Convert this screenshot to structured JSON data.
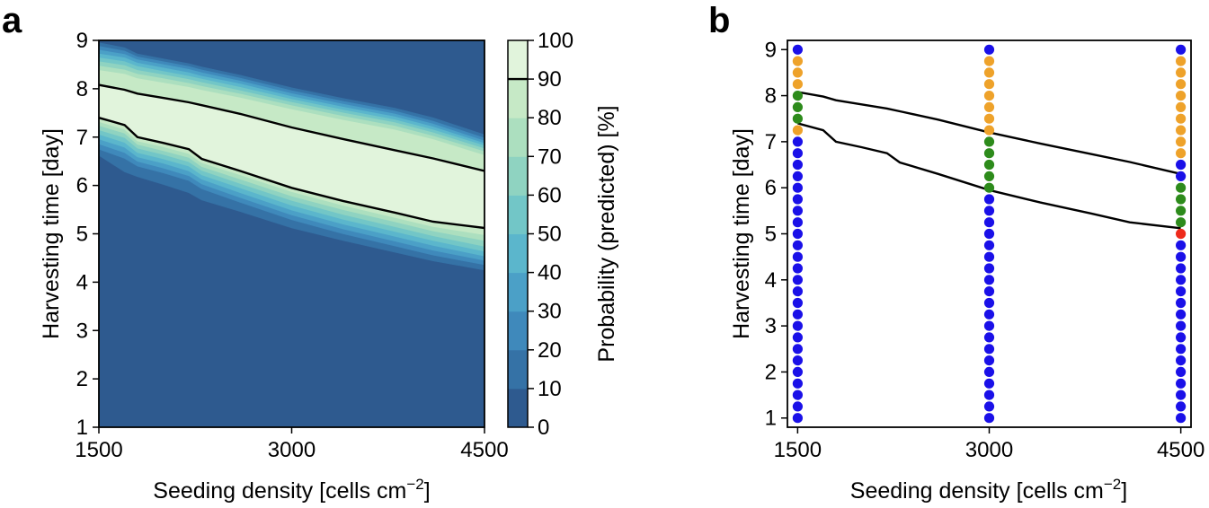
{
  "panels": {
    "a": "a",
    "b": "b"
  },
  "colors": {
    "colormap": [
      "#2e5a8f",
      "#3572a6",
      "#3f89bb",
      "#4ba0c7",
      "#5bb6cc",
      "#72c6c7",
      "#8fd3c1",
      "#acdfbf",
      "#c6e9c6",
      "#e1f4dc",
      "#ffffff"
    ],
    "contour_line": "#000000",
    "point_colors": {
      "blue": "#1a10e8",
      "orange": "#eea22a",
      "green": "#2d8b1b",
      "red": "#ee2a1b"
    }
  },
  "chart_data": [
    {
      "id": "panel_a",
      "type": "contourf",
      "title": "",
      "xlabel_prefix": "Seeding density [cells cm",
      "xlabel_sup": "−2",
      "xlabel_suffix": "]",
      "ylabel": "Harvesting time [day]",
      "xlim": [
        1500,
        4500
      ],
      "ylim": [
        1,
        9
      ],
      "xticks": [
        1500,
        3000,
        4500
      ],
      "yticks": [
        1,
        2,
        3,
        4,
        5,
        6,
        7,
        8,
        9
      ],
      "x_grid": [
        1500,
        1700,
        1800,
        2000,
        2200,
        2300,
        2600,
        3000,
        3400,
        3800,
        4100,
        4500
      ],
      "upper_boundaries": [
        {
          "level": 10,
          "y": [
            8.95,
            8.85,
            8.72,
            8.62,
            8.52,
            8.45,
            8.28,
            8.02,
            7.8,
            7.6,
            7.4,
            7.05
          ]
        },
        {
          "level": 20,
          "y": [
            8.88,
            8.78,
            8.66,
            8.56,
            8.46,
            8.39,
            8.22,
            7.96,
            7.74,
            7.54,
            7.33,
            6.98
          ]
        },
        {
          "level": 30,
          "y": [
            8.8,
            8.71,
            8.6,
            8.5,
            8.4,
            8.33,
            8.16,
            7.9,
            7.68,
            7.48,
            7.27,
            6.92
          ]
        },
        {
          "level": 40,
          "y": [
            8.72,
            8.64,
            8.53,
            8.43,
            8.33,
            8.26,
            8.1,
            7.84,
            7.62,
            7.42,
            7.21,
            6.87
          ]
        },
        {
          "level": 50,
          "y": [
            8.64,
            8.56,
            8.46,
            8.36,
            8.26,
            8.2,
            8.03,
            7.78,
            7.56,
            7.36,
            7.15,
            6.82
          ]
        },
        {
          "level": 60,
          "y": [
            8.56,
            8.48,
            8.38,
            8.29,
            8.19,
            8.13,
            7.96,
            7.72,
            7.5,
            7.3,
            7.09,
            6.76
          ]
        },
        {
          "level": 70,
          "y": [
            8.47,
            8.39,
            8.3,
            8.21,
            8.11,
            8.05,
            7.89,
            7.65,
            7.43,
            7.23,
            7.02,
            6.7
          ]
        },
        {
          "level": 80,
          "y": [
            8.38,
            8.3,
            8.21,
            8.12,
            8.03,
            7.97,
            7.81,
            7.57,
            7.35,
            7.15,
            6.95,
            6.62
          ]
        },
        {
          "level": 90,
          "y": [
            8.08,
            7.98,
            7.9,
            7.81,
            7.72,
            7.66,
            7.48,
            7.2,
            6.96,
            6.73,
            6.56,
            6.3
          ]
        }
      ],
      "lower_boundaries": [
        {
          "level": 90,
          "y": [
            7.4,
            7.25,
            7.0,
            6.88,
            6.75,
            6.55,
            6.3,
            5.95,
            5.68,
            5.44,
            5.25,
            5.12
          ]
        },
        {
          "level": 80,
          "y": [
            7.32,
            7.16,
            6.92,
            6.8,
            6.66,
            6.47,
            6.22,
            5.87,
            5.59,
            5.34,
            5.15,
            4.98
          ]
        },
        {
          "level": 70,
          "y": [
            7.24,
            7.08,
            6.85,
            6.72,
            6.58,
            6.39,
            6.13,
            5.78,
            5.5,
            5.25,
            5.06,
            4.86
          ]
        },
        {
          "level": 60,
          "y": [
            7.15,
            6.99,
            6.77,
            6.64,
            6.49,
            6.31,
            6.04,
            5.69,
            5.4,
            5.15,
            4.96,
            4.74
          ]
        },
        {
          "level": 50,
          "y": [
            7.06,
            6.89,
            6.68,
            6.55,
            6.4,
            6.22,
            5.95,
            5.59,
            5.3,
            5.05,
            4.86,
            4.64
          ]
        },
        {
          "level": 40,
          "y": [
            6.96,
            6.79,
            6.59,
            6.46,
            6.3,
            6.13,
            5.85,
            5.49,
            5.2,
            4.95,
            4.76,
            4.54
          ]
        },
        {
          "level": 30,
          "y": [
            6.86,
            6.68,
            6.5,
            6.36,
            6.2,
            6.03,
            5.75,
            5.39,
            5.1,
            4.85,
            4.66,
            4.45
          ]
        },
        {
          "level": 20,
          "y": [
            6.75,
            6.56,
            6.4,
            6.26,
            6.1,
            5.93,
            5.65,
            5.29,
            5.0,
            4.75,
            4.56,
            4.36
          ]
        },
        {
          "level": 10,
          "y": [
            6.62,
            6.28,
            6.18,
            6.02,
            5.85,
            5.7,
            5.46,
            5.12,
            4.86,
            4.62,
            4.44,
            4.25
          ]
        }
      ],
      "contour_lines": [
        {
          "level": 90,
          "x": [
            1500,
            1700,
            1800,
            2000,
            2200,
            2300,
            2600,
            3000,
            3400,
            3800,
            4100,
            4500
          ],
          "y": [
            8.08,
            7.98,
            7.9,
            7.81,
            7.72,
            7.66,
            7.48,
            7.2,
            6.96,
            6.73,
            6.56,
            6.3
          ]
        },
        {
          "level": 90,
          "x": [
            1500,
            1700,
            1800,
            2000,
            2200,
            2300,
            2600,
            3000,
            3400,
            3800,
            4100,
            4500
          ],
          "y": [
            7.4,
            7.25,
            7.0,
            6.88,
            6.75,
            6.55,
            6.3,
            5.95,
            5.68,
            5.44,
            5.25,
            5.12
          ]
        }
      ],
      "colorbar": {
        "label": "Probability (predicted) [%]",
        "levels": [
          0,
          10,
          20,
          30,
          40,
          50,
          60,
          70,
          80,
          90,
          100
        ],
        "tick_labels": [
          "0",
          "10",
          "20",
          "30",
          "40",
          "50",
          "60",
          "70",
          "80",
          "90",
          "100"
        ],
        "line_at": 90
      }
    },
    {
      "id": "panel_b",
      "type": "scatter",
      "title": "",
      "xlabel_prefix": "Seeding density [cells cm",
      "xlabel_sup": "−2",
      "xlabel_suffix": "]",
      "ylabel": "Harvesting time [day]",
      "xlim": [
        1420,
        4580
      ],
      "ylim": [
        0.8,
        9.2
      ],
      "xticks": [
        1500,
        3000,
        4500
      ],
      "yticks": [
        1,
        2,
        3,
        4,
        5,
        6,
        7,
        8,
        9
      ],
      "series": [
        {
          "name": "seed_1500",
          "x": 1500,
          "y_start": 1.0,
          "y_step": 0.25,
          "colors": [
            "blue",
            "blue",
            "blue",
            "blue",
            "blue",
            "blue",
            "blue",
            "blue",
            "blue",
            "blue",
            "blue",
            "blue",
            "blue",
            "blue",
            "blue",
            "blue",
            "blue",
            "blue",
            "blue",
            "blue",
            "blue",
            "blue",
            "blue",
            "blue",
            "blue",
            "orange",
            "green",
            "green",
            "green",
            "orange",
            "orange",
            "orange",
            "blue"
          ]
        },
        {
          "name": "seed_3000",
          "x": 3000,
          "y_start": 1.0,
          "y_step": 0.25,
          "colors": [
            "blue",
            "blue",
            "blue",
            "blue",
            "blue",
            "blue",
            "blue",
            "blue",
            "blue",
            "blue",
            "blue",
            "blue",
            "blue",
            "blue",
            "blue",
            "blue",
            "blue",
            "blue",
            "blue",
            "blue",
            "green",
            "green",
            "green",
            "green",
            "green",
            "orange",
            "orange",
            "orange",
            "orange",
            "orange",
            "orange",
            "orange",
            "blue"
          ]
        },
        {
          "name": "seed_4500",
          "x": 4500,
          "y_start": 1.0,
          "y_step": 0.25,
          "colors": [
            "blue",
            "blue",
            "blue",
            "blue",
            "blue",
            "blue",
            "blue",
            "blue",
            "blue",
            "blue",
            "blue",
            "blue",
            "blue",
            "blue",
            "blue",
            "blue",
            "red",
            "green",
            "green",
            "green",
            "green",
            "blue",
            "blue",
            "orange",
            "orange",
            "orange",
            "orange",
            "orange",
            "orange",
            "orange",
            "orange",
            "orange",
            "blue"
          ]
        }
      ],
      "contour_lines": [
        {
          "level": 90,
          "x": [
            1500,
            1700,
            1800,
            2000,
            2200,
            2300,
            2600,
            3000,
            3400,
            3800,
            4100,
            4500
          ],
          "y": [
            8.08,
            7.98,
            7.9,
            7.81,
            7.72,
            7.66,
            7.48,
            7.2,
            6.96,
            6.73,
            6.56,
            6.3
          ]
        },
        {
          "level": 90,
          "x": [
            1500,
            1700,
            1800,
            2000,
            2200,
            2300,
            2600,
            3000,
            3400,
            3800,
            4100,
            4500
          ],
          "y": [
            7.4,
            7.25,
            7.0,
            6.88,
            6.75,
            6.55,
            6.3,
            5.95,
            5.68,
            5.44,
            5.25,
            5.12
          ]
        }
      ]
    }
  ]
}
